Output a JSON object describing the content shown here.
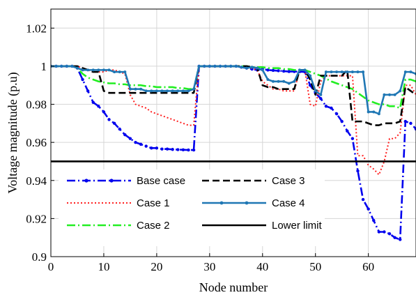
{
  "chart_data": {
    "type": "line",
    "xlabel": "Node number",
    "ylabel": "Voltage magnitude (p.u)",
    "xlim": [
      0,
      69
    ],
    "ylim": [
      0.9,
      1.03
    ],
    "xticks": [
      0,
      10,
      20,
      30,
      40,
      50,
      60
    ],
    "xtick_labels": [
      "0",
      "10",
      "20",
      "30",
      "40",
      "50",
      "60"
    ],
    "yticks": [
      0.9,
      0.92,
      0.94,
      0.96,
      0.98,
      1.0,
      1.02
    ],
    "ytick_labels": [
      "0.9",
      "0.92",
      "0.94",
      "0.96",
      "0.98",
      "1",
      "1.02"
    ],
    "grid": true,
    "legend_placement": "bottom-left",
    "series": [
      {
        "name": "Base case",
        "color": "#0000ee",
        "style": "dash-dot-marker",
        "values": [
          1.0,
          1.0,
          1.0,
          1.0,
          1.0,
          0.999,
          0.993,
          0.987,
          0.981,
          0.979,
          0.976,
          0.972,
          0.97,
          0.967,
          0.964,
          0.962,
          0.96,
          0.959,
          0.958,
          0.957,
          0.957,
          0.9565,
          0.9565,
          0.9563,
          0.9562,
          0.9561,
          0.956,
          0.956,
          1.0,
          1.0,
          1.0,
          1.0,
          1.0,
          1.0,
          1.0,
          1.0,
          0.9995,
          0.999,
          0.9985,
          0.998,
          0.9985,
          0.998,
          0.9978,
          0.9976,
          0.9974,
          0.9972,
          0.9972,
          0.9971,
          0.997,
          0.99,
          0.986,
          0.983,
          0.979,
          0.978,
          0.975,
          0.971,
          0.966,
          0.962,
          0.945,
          0.93,
          0.925,
          0.919,
          0.913,
          0.913,
          0.912,
          0.91,
          0.909,
          0.971,
          0.97,
          0.967
        ]
      },
      {
        "name": "Case 1",
        "color": "#ff2020",
        "style": "dotted",
        "values": [
          1.0,
          1.0,
          1.0,
          1.0,
          1.0,
          1.0,
          0.999,
          0.998,
          0.997,
          0.997,
          0.997,
          0.998,
          0.998,
          0.997,
          0.996,
          0.985,
          0.98,
          0.979,
          0.978,
          0.976,
          0.975,
          0.974,
          0.973,
          0.972,
          0.971,
          0.97,
          0.969,
          0.969,
          1.0,
          1.0,
          1.0,
          1.0,
          1.0,
          1.0,
          1.0,
          1.0,
          0.9995,
          0.999,
          0.999,
          0.998,
          0.992,
          0.99,
          0.988,
          0.988,
          0.987,
          0.987,
          0.987,
          0.998,
          0.998,
          0.98,
          0.979,
          0.992,
          0.995,
          0.995,
          0.995,
          0.995,
          0.995,
          0.995,
          0.953,
          0.953,
          0.948,
          0.946,
          0.943,
          0.95,
          0.962,
          0.962,
          0.965,
          0.99,
          0.99,
          0.985
        ]
      },
      {
        "name": "Case 2",
        "color": "#22ee22",
        "style": "dash-dot",
        "values": [
          1.0,
          1.0,
          1.0,
          1.0,
          1.0,
          0.999,
          0.996,
          0.994,
          0.993,
          0.992,
          0.9915,
          0.991,
          0.991,
          0.9905,
          0.9905,
          0.99,
          0.99,
          0.99,
          0.9895,
          0.9895,
          0.989,
          0.989,
          0.989,
          0.989,
          0.9885,
          0.9885,
          0.988,
          0.988,
          1.0,
          1.0,
          1.0,
          1.0,
          1.0,
          1.0,
          1.0,
          1.0,
          1.0,
          1.0,
          0.9995,
          0.9995,
          0.9995,
          0.999,
          0.999,
          0.999,
          0.9985,
          0.9985,
          0.998,
          0.998,
          0.998,
          0.997,
          0.996,
          0.995,
          0.9935,
          0.992,
          0.991,
          0.99,
          0.989,
          0.988,
          0.986,
          0.984,
          0.982,
          0.981,
          0.98,
          0.98,
          0.979,
          0.979,
          0.978,
          0.993,
          0.993,
          0.992
        ]
      },
      {
        "name": "Case 3",
        "color": "#000000",
        "style": "dashed",
        "values": [
          1.0,
          1.0,
          1.0,
          1.0,
          1.0,
          1.0,
          0.999,
          0.998,
          0.997,
          0.997,
          0.987,
          0.986,
          0.986,
          0.986,
          0.986,
          0.986,
          0.986,
          0.986,
          0.986,
          0.986,
          0.986,
          0.986,
          0.986,
          0.986,
          0.986,
          0.986,
          0.986,
          0.986,
          1.0,
          1.0,
          1.0,
          1.0,
          1.0,
          1.0,
          1.0,
          1.0,
          1.0,
          1.0,
          0.9995,
          0.999,
          0.99,
          0.989,
          0.989,
          0.988,
          0.988,
          0.988,
          0.988,
          0.998,
          0.998,
          0.993,
          0.985,
          0.995,
          0.995,
          0.995,
          0.995,
          0.995,
          0.998,
          0.971,
          0.971,
          0.971,
          0.97,
          0.969,
          0.969,
          0.97,
          0.97,
          0.97,
          0.971,
          0.989,
          0.987,
          0.985
        ]
      },
      {
        "name": "Case 4",
        "color": "#1f77b4",
        "style": "solid-marker",
        "values": [
          1.0,
          1.0,
          1.0,
          1.0,
          1.0,
          0.999,
          0.998,
          0.998,
          0.998,
          0.998,
          0.998,
          0.998,
          0.997,
          0.997,
          0.997,
          0.988,
          0.988,
          0.988,
          0.987,
          0.987,
          0.987,
          0.987,
          0.987,
          0.987,
          0.987,
          0.987,
          0.987,
          0.988,
          1.0,
          1.0,
          1.0,
          1.0,
          1.0,
          1.0,
          1.0,
          1.0,
          0.9995,
          0.999,
          0.9995,
          0.999,
          0.998,
          0.993,
          0.992,
          0.992,
          0.992,
          0.991,
          0.992,
          0.998,
          0.998,
          0.995,
          0.987,
          0.985,
          0.997,
          0.997,
          0.997,
          0.997,
          0.997,
          0.997,
          0.997,
          0.997,
          0.976,
          0.976,
          0.975,
          0.985,
          0.985,
          0.985,
          0.987,
          0.997,
          0.997,
          0.996
        ]
      },
      {
        "name": "Lower limit",
        "color": "#000000",
        "style": "solid-thick",
        "x": [
          0,
          69
        ],
        "values": [
          0.95,
          0.95
        ]
      }
    ],
    "legend_left": [
      "Base case",
      "Case 1",
      "Case 2"
    ],
    "legend_right": [
      "Case 3",
      "Case 4",
      "Lower limit"
    ]
  }
}
